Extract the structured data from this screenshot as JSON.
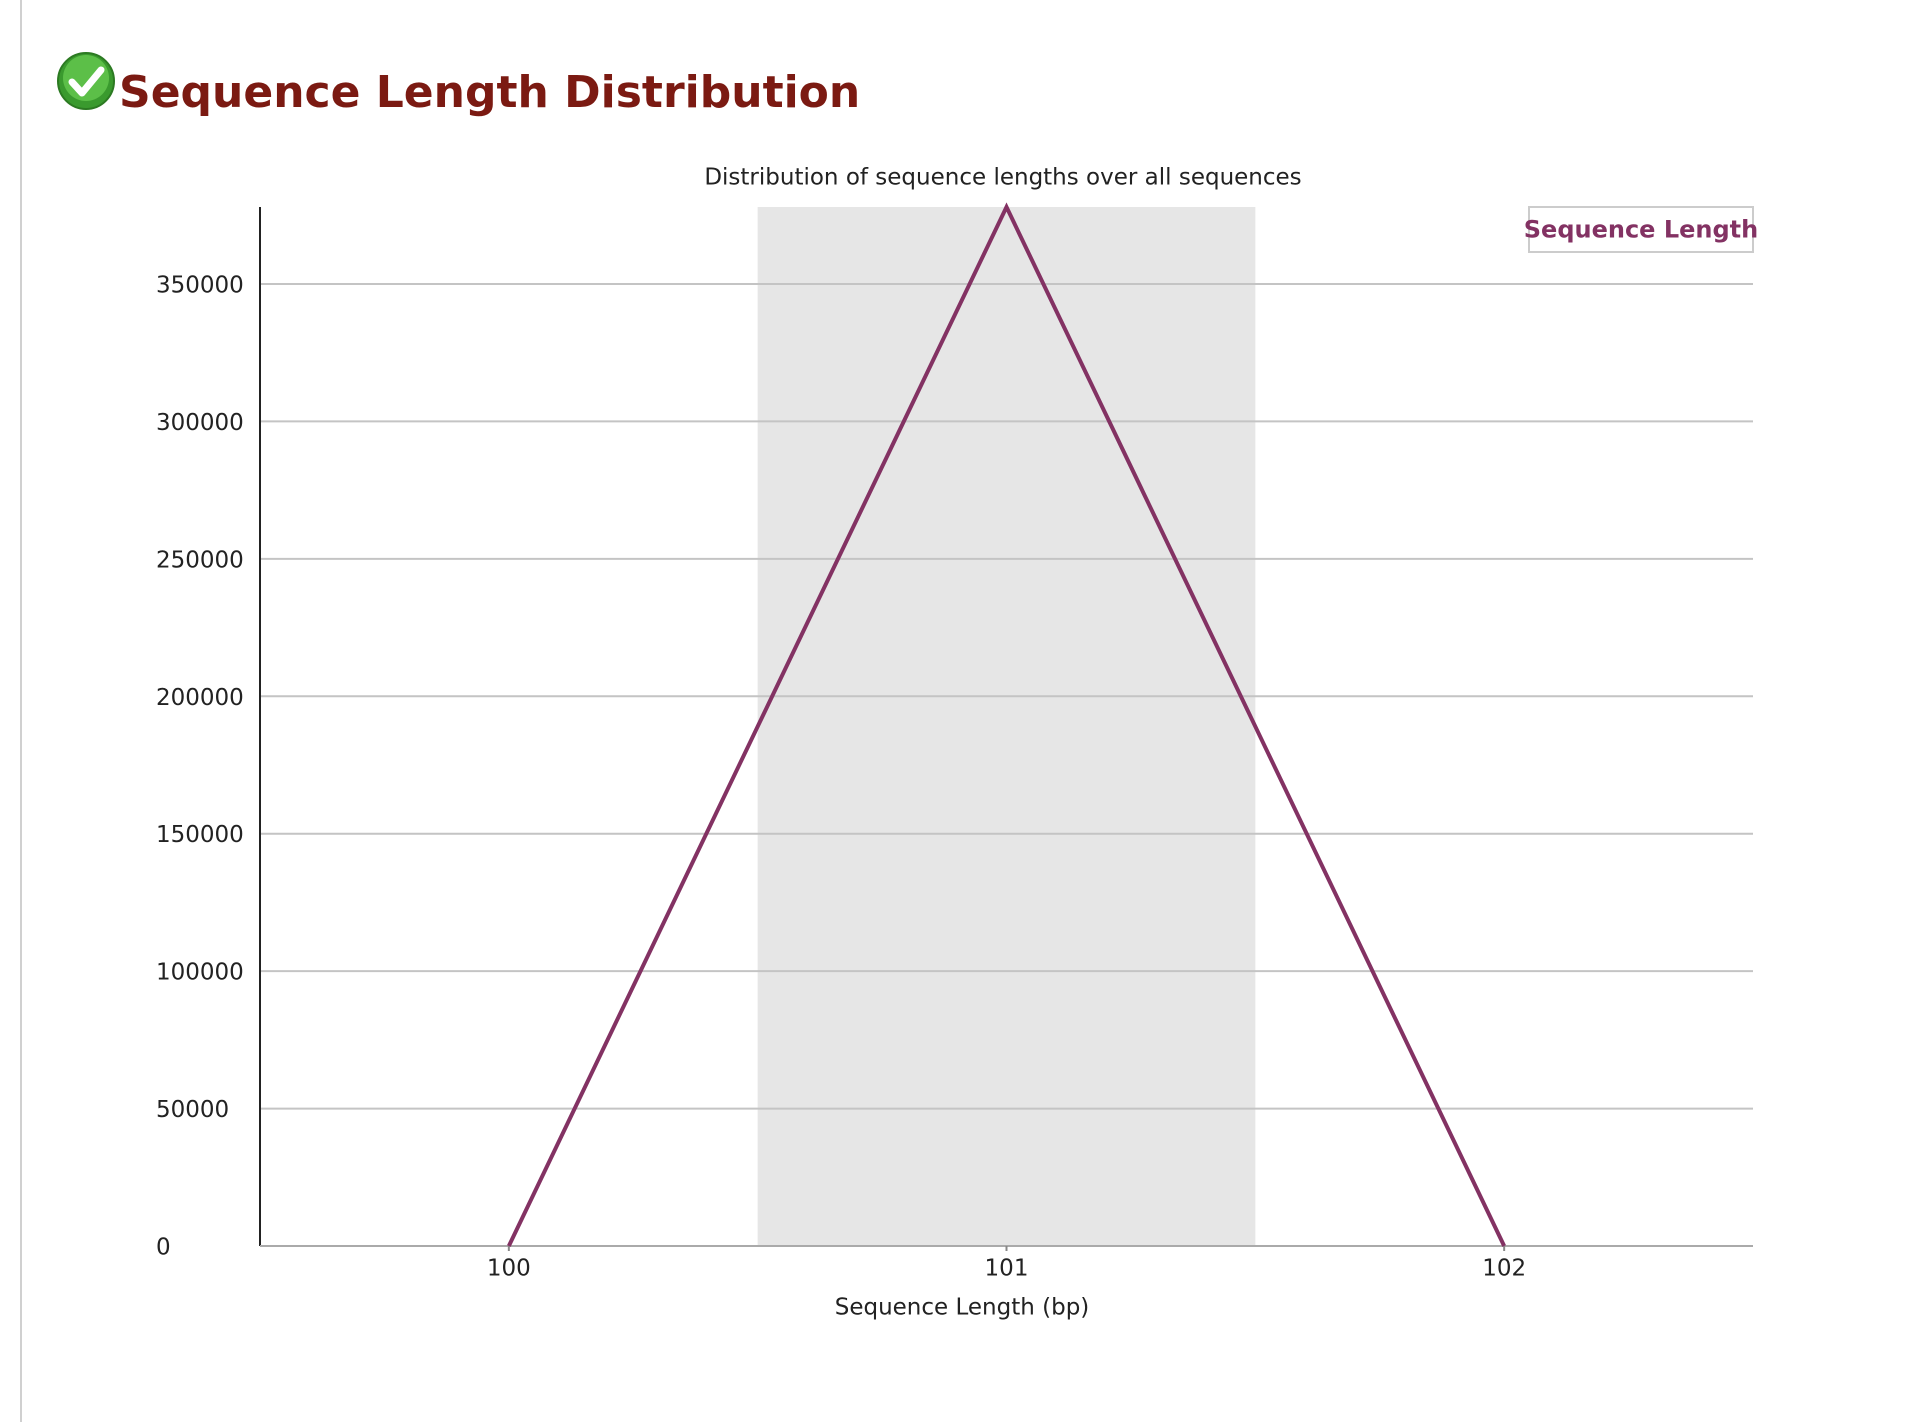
{
  "header": {
    "title": "Sequence Length Distribution"
  },
  "chart_data": {
    "type": "line",
    "title": "Distribution of sequence lengths over all sequences",
    "x_label": "Sequence Length (bp)",
    "x": [
      100,
      101,
      102
    ],
    "series": [
      {
        "name": "Sequence Length",
        "color": "#833263",
        "values": [
          0,
          378000,
          0
        ]
      }
    ],
    "xlim": [
      99.5,
      102.5
    ],
    "ylim": [
      0,
      378000
    ],
    "xticks": [
      100,
      101,
      102
    ],
    "yticks": [
      0,
      50000,
      100000,
      150000,
      200000,
      250000,
      300000,
      350000
    ],
    "grid": true,
    "legend": "top-right"
  }
}
